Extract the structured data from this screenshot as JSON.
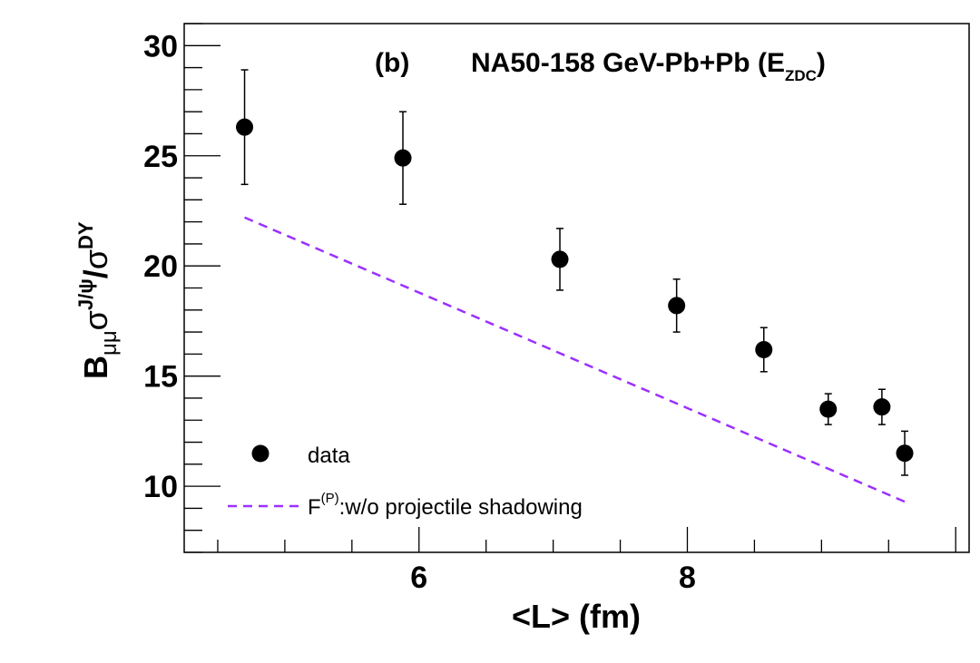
{
  "chart_data": {
    "type": "scatter",
    "panel_label": "(b)",
    "title_main": "NA50-158 GeV-Pb+Pb (E",
    "title_sub": "ZDC",
    "title_close": ")",
    "xlabel": "<L> (fm)",
    "ylabel_parts": {
      "b": "B",
      "mumu": "μμ",
      "sigma1": "σ",
      "jpsi": "J/ψ",
      "slash": "/",
      "sigma2": "σ",
      "dy": "DY"
    },
    "xlim": [
      4.25,
      10.1
    ],
    "ylim": [
      7,
      31
    ],
    "x_ticks": [
      6,
      8
    ],
    "y_ticks": [
      10,
      15,
      20,
      25,
      30
    ],
    "series": [
      {
        "name": "data",
        "kind": "points",
        "color": "#000000",
        "x": [
          4.7,
          5.88,
          7.05,
          7.92,
          8.57,
          9.05,
          9.45,
          9.62
        ],
        "y": [
          26.3,
          24.9,
          20.3,
          18.2,
          16.2,
          13.5,
          13.6,
          11.5
        ],
        "err_low": [
          2.6,
          2.1,
          1.4,
          1.2,
          1.0,
          0.7,
          0.8,
          1.0
        ],
        "err_high": [
          2.6,
          2.1,
          1.4,
          1.2,
          1.0,
          0.7,
          0.8,
          1.0
        ]
      },
      {
        "name_main": "F",
        "name_sup": "(P)",
        "name_rest": ":w/o projectile shadowing",
        "kind": "dashed-line",
        "color": "#9b30ff",
        "x": [
          4.7,
          9.62
        ],
        "y": [
          22.2,
          9.3
        ]
      }
    ],
    "legend": {
      "placement": "bottom-left"
    }
  }
}
